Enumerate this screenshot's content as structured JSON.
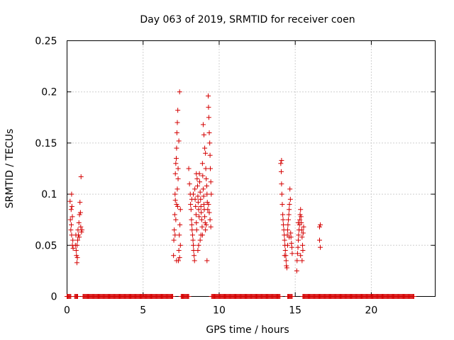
{
  "chart_data": {
    "type": "scatter",
    "title": "Day 063 of 2019, SRMTID for receiver coen",
    "xlabel": "GPS time / hours",
    "ylabel": "SRMTID / TECUs",
    "xlim": [
      0,
      24.2
    ],
    "ylim": [
      0,
      0.25
    ],
    "grid": true,
    "marker": "+",
    "colors": {
      "series": "#d40000",
      "grid": "#a0a0a0",
      "axis": "#000000"
    },
    "x_ticks": [
      {
        "value": 0,
        "label": "0"
      },
      {
        "value": 5,
        "label": "5"
      },
      {
        "value": 10,
        "label": "10"
      },
      {
        "value": 15,
        "label": "15"
      },
      {
        "value": 20,
        "label": "20"
      }
    ],
    "y_ticks": [
      {
        "value": 0,
        "label": "0"
      },
      {
        "value": 0.05,
        "label": "0.05"
      },
      {
        "value": 0.1,
        "label": "0.1"
      },
      {
        "value": 0.15,
        "label": "0.15"
      },
      {
        "value": 0.2,
        "label": "0.2"
      },
      {
        "value": 0.25,
        "label": "0.25"
      }
    ],
    "zero_runs": [
      [
        0.0,
        0.25
      ],
      [
        0.5,
        0.7
      ],
      [
        1.05,
        6.95
      ],
      [
        7.5,
        8.0
      ],
      [
        9.5,
        14.0
      ],
      [
        14.5,
        14.8
      ],
      [
        15.5,
        22.8
      ]
    ],
    "series": [
      {
        "name": "SRMTID",
        "points": [
          [
            0.2,
            0.093
          ],
          [
            0.22,
            0.075
          ],
          [
            0.25,
            0.065
          ],
          [
            0.27,
            0.085
          ],
          [
            0.3,
            0.1
          ],
          [
            0.3,
            0.06
          ],
          [
            0.32,
            0.088
          ],
          [
            0.35,
            0.078
          ],
          [
            0.35,
            0.05
          ],
          [
            0.38,
            0.055
          ],
          [
            0.4,
            0.047
          ],
          [
            0.28,
            0.07
          ],
          [
            0.55,
            0.05
          ],
          [
            0.6,
            0.045
          ],
          [
            0.62,
            0.04
          ],
          [
            0.65,
            0.033
          ],
          [
            0.68,
            0.038
          ],
          [
            0.7,
            0.055
          ],
          [
            0.72,
            0.065
          ],
          [
            0.75,
            0.06
          ],
          [
            0.78,
            0.072
          ],
          [
            0.8,
            0.058
          ],
          [
            0.82,
            0.08
          ],
          [
            0.85,
            0.092
          ],
          [
            0.88,
            0.082
          ],
          [
            0.9,
            0.068
          ],
          [
            0.92,
            0.117
          ],
          [
            0.95,
            0.063
          ],
          [
            0.98,
            0.065
          ],
          [
            0.58,
            0.06
          ],
          [
            0.66,
            0.05
          ],
          [
            7.0,
            0.04
          ],
          [
            7.02,
            0.055
          ],
          [
            7.05,
            0.065
          ],
          [
            7.08,
            0.08
          ],
          [
            7.1,
            0.1
          ],
          [
            7.12,
            0.12
          ],
          [
            7.15,
            0.13
          ],
          [
            7.18,
            0.135
          ],
          [
            7.2,
            0.145
          ],
          [
            7.22,
            0.16
          ],
          [
            7.25,
            0.17
          ],
          [
            7.28,
            0.182
          ],
          [
            7.1,
            0.06
          ],
          [
            7.15,
            0.075
          ],
          [
            7.2,
            0.09
          ],
          [
            7.25,
            0.105
          ],
          [
            7.3,
            0.115
          ],
          [
            7.32,
            0.035
          ],
          [
            7.35,
            0.045
          ],
          [
            7.38,
            0.06
          ],
          [
            7.4,
            0.2
          ],
          [
            7.42,
            0.07
          ],
          [
            7.45,
            0.085
          ],
          [
            7.3,
            0.125
          ],
          [
            7.35,
            0.152
          ],
          [
            7.2,
            0.035
          ],
          [
            7.4,
            0.038
          ],
          [
            7.45,
            0.05
          ],
          [
            7.12,
            0.094
          ],
          [
            7.27,
            0.088
          ],
          [
            8.0,
            0.125
          ],
          [
            8.05,
            0.11
          ],
          [
            8.1,
            0.1
          ],
          [
            8.12,
            0.09
          ],
          [
            8.15,
            0.085
          ],
          [
            8.18,
            0.075
          ],
          [
            8.2,
            0.07
          ],
          [
            8.22,
            0.065
          ],
          [
            8.25,
            0.06
          ],
          [
            8.28,
            0.055
          ],
          [
            8.3,
            0.05
          ],
          [
            8.32,
            0.045
          ],
          [
            8.35,
            0.04
          ],
          [
            8.38,
            0.035
          ],
          [
            8.4,
            0.105
          ],
          [
            8.42,
            0.095
          ],
          [
            8.45,
            0.088
          ],
          [
            8.48,
            0.08
          ],
          [
            8.5,
            0.072
          ],
          [
            8.52,
            0.065
          ],
          [
            8.55,
            0.115
          ],
          [
            8.58,
            0.108
          ],
          [
            8.6,
            0.098
          ],
          [
            8.62,
            0.092
          ],
          [
            8.65,
            0.085
          ],
          [
            8.68,
            0.078
          ],
          [
            8.7,
            0.12
          ],
          [
            8.72,
            0.112
          ],
          [
            8.75,
            0.102
          ],
          [
            8.78,
            0.095
          ],
          [
            8.8,
            0.088
          ],
          [
            8.82,
            0.082
          ],
          [
            8.85,
            0.075
          ],
          [
            8.88,
            0.068
          ],
          [
            8.9,
            0.13
          ],
          [
            8.92,
            0.118
          ],
          [
            8.95,
            0.105
          ],
          [
            8.98,
            0.098
          ],
          [
            9.0,
            0.09
          ],
          [
            9.02,
            0.085
          ],
          [
            9.05,
            0.078
          ],
          [
            9.08,
            0.072
          ],
          [
            9.1,
            0.14
          ],
          [
            9.12,
            0.125
          ],
          [
            9.15,
            0.115
          ],
          [
            9.18,
            0.108
          ],
          [
            9.2,
            0.1
          ],
          [
            9.22,
            0.092
          ],
          [
            9.25,
            0.085
          ],
          [
            9.28,
            0.196
          ],
          [
            9.3,
            0.185
          ],
          [
            9.32,
            0.175
          ],
          [
            9.35,
            0.16
          ],
          [
            9.38,
            0.15
          ],
          [
            9.4,
            0.138
          ],
          [
            9.42,
            0.125
          ],
          [
            9.45,
            0.112
          ],
          [
            9.48,
            0.1
          ],
          [
            9.3,
            0.09
          ],
          [
            9.35,
            0.082
          ],
          [
            9.4,
            0.075
          ],
          [
            9.45,
            0.068
          ],
          [
            8.95,
            0.168
          ],
          [
            9.0,
            0.158
          ],
          [
            9.05,
            0.145
          ],
          [
            8.6,
            0.045
          ],
          [
            8.65,
            0.05
          ],
          [
            9.2,
            0.035
          ],
          [
            8.5,
            0.12
          ],
          [
            8.3,
            0.1
          ],
          [
            8.2,
            0.095
          ],
          [
            8.9,
            0.06
          ],
          [
            9.1,
            0.065
          ],
          [
            9.15,
            0.07
          ],
          [
            8.75,
            0.055
          ],
          [
            8.8,
            0.06
          ],
          [
            14.05,
            0.13
          ],
          [
            14.08,
            0.122
          ],
          [
            14.1,
            0.11
          ],
          [
            14.12,
            0.1
          ],
          [
            14.15,
            0.09
          ],
          [
            14.18,
            0.08
          ],
          [
            14.2,
            0.075
          ],
          [
            14.22,
            0.07
          ],
          [
            14.25,
            0.065
          ],
          [
            14.28,
            0.06
          ],
          [
            14.3,
            0.055
          ],
          [
            14.32,
            0.05
          ],
          [
            14.35,
            0.045
          ],
          [
            14.38,
            0.04
          ],
          [
            14.4,
            0.035
          ],
          [
            14.42,
            0.03
          ],
          [
            14.45,
            0.028
          ],
          [
            14.48,
            0.06
          ],
          [
            14.5,
            0.065
          ],
          [
            14.52,
            0.07
          ],
          [
            14.55,
            0.075
          ],
          [
            14.58,
            0.08
          ],
          [
            14.6,
            0.085
          ],
          [
            14.62,
            0.09
          ],
          [
            14.65,
            0.105
          ],
          [
            14.68,
            0.095
          ],
          [
            14.7,
            0.062
          ],
          [
            14.72,
            0.058
          ],
          [
            14.75,
            0.052
          ],
          [
            14.78,
            0.048
          ],
          [
            14.8,
            0.042
          ],
          [
            14.1,
            0.133
          ],
          [
            14.3,
            0.04
          ],
          [
            14.5,
            0.05
          ],
          [
            14.6,
            0.058
          ],
          [
            15.1,
            0.025
          ],
          [
            15.12,
            0.035
          ],
          [
            15.15,
            0.042
          ],
          [
            15.18,
            0.048
          ],
          [
            15.2,
            0.055
          ],
          [
            15.22,
            0.06
          ],
          [
            15.25,
            0.065
          ],
          [
            15.28,
            0.07
          ],
          [
            15.3,
            0.075
          ],
          [
            15.32,
            0.08
          ],
          [
            15.35,
            0.085
          ],
          [
            15.38,
            0.078
          ],
          [
            15.4,
            0.072
          ],
          [
            15.42,
            0.065
          ],
          [
            15.45,
            0.058
          ],
          [
            15.48,
            0.05
          ],
          [
            15.5,
            0.045
          ],
          [
            15.52,
            0.062
          ],
          [
            15.55,
            0.068
          ],
          [
            15.35,
            0.04
          ],
          [
            15.45,
            0.035
          ],
          [
            15.2,
            0.072
          ],
          [
            16.6,
            0.068
          ],
          [
            16.65,
            0.07
          ],
          [
            16.6,
            0.055
          ],
          [
            16.65,
            0.048
          ]
        ]
      }
    ]
  }
}
